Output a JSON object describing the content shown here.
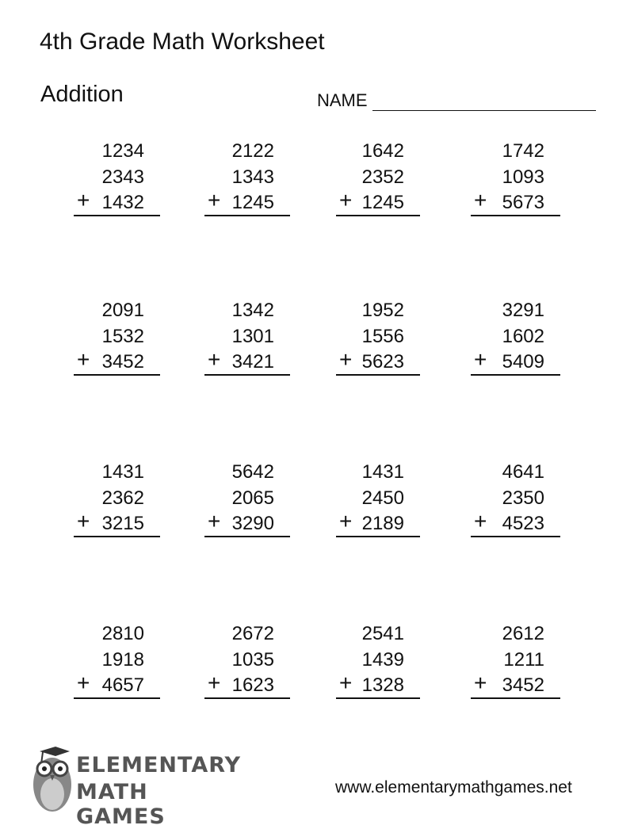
{
  "header": {
    "title": "4th Grade Math Worksheet",
    "subtitle": "Addition",
    "name_label": "NAME"
  },
  "problems": [
    {
      "a": "1234",
      "b": "2343",
      "c": "1432",
      "op": "+"
    },
    {
      "a": "2122",
      "b": "1343",
      "c": "1245",
      "op": "+"
    },
    {
      "a": "1642",
      "b": "2352",
      "c": "1245",
      "op": "+"
    },
    {
      "a": "1742",
      "b": "1093",
      "c": "5673",
      "op": "+"
    },
    {
      "a": "2091",
      "b": "1532",
      "c": "3452",
      "op": "+"
    },
    {
      "a": "1342",
      "b": "1301",
      "c": "3421",
      "op": "+"
    },
    {
      "a": "1952",
      "b": "1556",
      "c": "5623",
      "op": "+"
    },
    {
      "a": "3291",
      "b": "1602",
      "c": "5409",
      "op": "+"
    },
    {
      "a": "1431",
      "b": "2362",
      "c": "3215",
      "op": "+"
    },
    {
      "a": "5642",
      "b": "2065",
      "c": "3290",
      "op": "+"
    },
    {
      "a": "1431",
      "b": "2450",
      "c": "2189",
      "op": "+"
    },
    {
      "a": "4641",
      "b": "2350",
      "c": "4523",
      "op": "+"
    },
    {
      "a": "2810",
      "b": "1918",
      "c": "4657",
      "op": "+"
    },
    {
      "a": "2672",
      "b": "1035",
      "c": "1623",
      "op": "+"
    },
    {
      "a": "2541",
      "b": "1439",
      "c": "1328",
      "op": "+"
    },
    {
      "a": "2612",
      "b": "1211",
      "c": "3452",
      "op": "+"
    }
  ],
  "footer": {
    "logo_line1": "ELEMENTARY",
    "logo_line2": "MATH GAMES",
    "url": "www.elementarymathgames.net"
  }
}
